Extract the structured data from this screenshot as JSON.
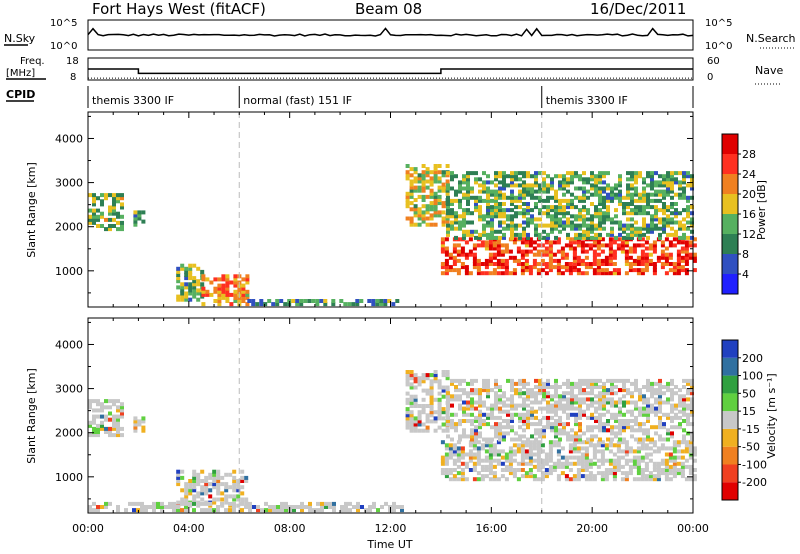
{
  "header": {
    "station": "Fort Hays West (fitACF)",
    "beam": "Beam 08",
    "date": "16/Dec/2011"
  },
  "noise_panel": {
    "left_label": "N.Sky",
    "right_label": "N.Search",
    "left_ticks": [
      "10^5",
      "10^0"
    ],
    "right_ticks": [
      "10^5",
      "10^0"
    ]
  },
  "freq_panel": {
    "left_label_1": "Freq.",
    "left_label_2": "[MHz]",
    "right_label": "Nave",
    "left_ticks": [
      "18",
      "8"
    ],
    "right_ticks": [
      "60",
      "0"
    ],
    "freq_steps": [
      {
        "t": 0,
        "v": 13
      },
      {
        "t": 2,
        "v": 11
      },
      {
        "t": 14,
        "v": 13
      }
    ],
    "nave_level": 5
  },
  "cpid": {
    "label": "CPID",
    "segments": [
      {
        "start": 0,
        "end": 6,
        "text": "themis 3300 IF"
      },
      {
        "start": 6,
        "end": 18,
        "text": "normal (fast) 151 IF"
      },
      {
        "start": 18,
        "end": 24,
        "text": "themis 3300 IF"
      }
    ]
  },
  "chart_data": [
    {
      "type": "heatmap",
      "name": "power",
      "ylabel": "Slant Range [km]",
      "xlabel": "Time UT",
      "xlim": [
        0,
        24
      ],
      "ylim": [
        180,
        4600
      ],
      "x_ticks": [
        "00:00",
        "04:00",
        "08:00",
        "12:00",
        "16:00",
        "20:00",
        "00:00"
      ],
      "y_ticks": [
        1000,
        2000,
        3000,
        4000
      ],
      "colorbar": {
        "label": "Power [dB]",
        "ticks": [
          "4",
          "8",
          "12",
          "16",
          "20",
          "24",
          "28"
        ],
        "colors": [
          "#2020ff",
          "#3050c0",
          "#2e7f54",
          "#56b060",
          "#e8c020",
          "#f08020",
          "#ff3020",
          "#e00000"
        ]
      },
      "regions": [
        {
          "t0": 0.0,
          "t1": 1.4,
          "r0": 1900,
          "r1": 2700,
          "level": 0.45
        },
        {
          "t0": 1.8,
          "t1": 2.2,
          "r0": 2000,
          "r1": 2300,
          "level": 0.35
        },
        {
          "t0": 3.5,
          "t1": 4.5,
          "r0": 300,
          "r1": 1100,
          "level": 0.4
        },
        {
          "t0": 4.5,
          "t1": 6.3,
          "r0": 200,
          "r1": 900,
          "level": 0.7
        },
        {
          "t0": 6.0,
          "t1": 12.5,
          "r0": 200,
          "r1": 320,
          "level": 0.35
        },
        {
          "t0": 12.6,
          "t1": 14.3,
          "r0": 2000,
          "r1": 3400,
          "level": 0.55
        },
        {
          "t0": 14.0,
          "t1": 24.0,
          "r0": 900,
          "r1": 1700,
          "level": 0.85
        },
        {
          "t0": 14.2,
          "t1": 24.0,
          "r0": 1700,
          "r1": 3200,
          "level": 0.4
        }
      ]
    },
    {
      "type": "heatmap",
      "name": "velocity",
      "ylabel": "Slant Range [km]",
      "xlabel": "Time UT",
      "xlim": [
        0,
        24
      ],
      "ylim": [
        180,
        4600
      ],
      "x_ticks": [
        "00:00",
        "04:00",
        "08:00",
        "12:00",
        "16:00",
        "20:00",
        "00:00"
      ],
      "y_ticks": [
        1000,
        2000,
        3000,
        4000
      ],
      "colorbar": {
        "label": "Velocity [m s⁻¹]",
        "ticks": [
          "200",
          "100",
          "50",
          "15",
          "-15",
          "-50",
          "-100",
          "-200"
        ],
        "colors": [
          "#2040c0",
          "#3070a0",
          "#30a040",
          "#60d040",
          "#c8c8c8",
          "#f0b020",
          "#f08020",
          "#f04020",
          "#e00000"
        ]
      },
      "regions": [
        {
          "t0": 0.0,
          "t1": 1.4,
          "r0": 1900,
          "r1": 2700,
          "level": 0.45
        },
        {
          "t0": 1.8,
          "t1": 2.2,
          "r0": 2000,
          "r1": 2300,
          "level": 0.35
        },
        {
          "t0": 3.5,
          "t1": 6.2,
          "r0": 300,
          "r1": 1100,
          "level": 0.4
        },
        {
          "t0": 0.0,
          "t1": 12.5,
          "r0": 200,
          "r1": 360,
          "level": 0.55
        },
        {
          "t0": 12.6,
          "t1": 14.3,
          "r0": 2000,
          "r1": 3400,
          "level": 0.5
        },
        {
          "t0": 14.0,
          "t1": 24.0,
          "r0": 900,
          "r1": 1800,
          "level": 0.85
        },
        {
          "t0": 14.2,
          "t1": 24.0,
          "r0": 1800,
          "r1": 3200,
          "level": 0.35
        }
      ]
    }
  ]
}
